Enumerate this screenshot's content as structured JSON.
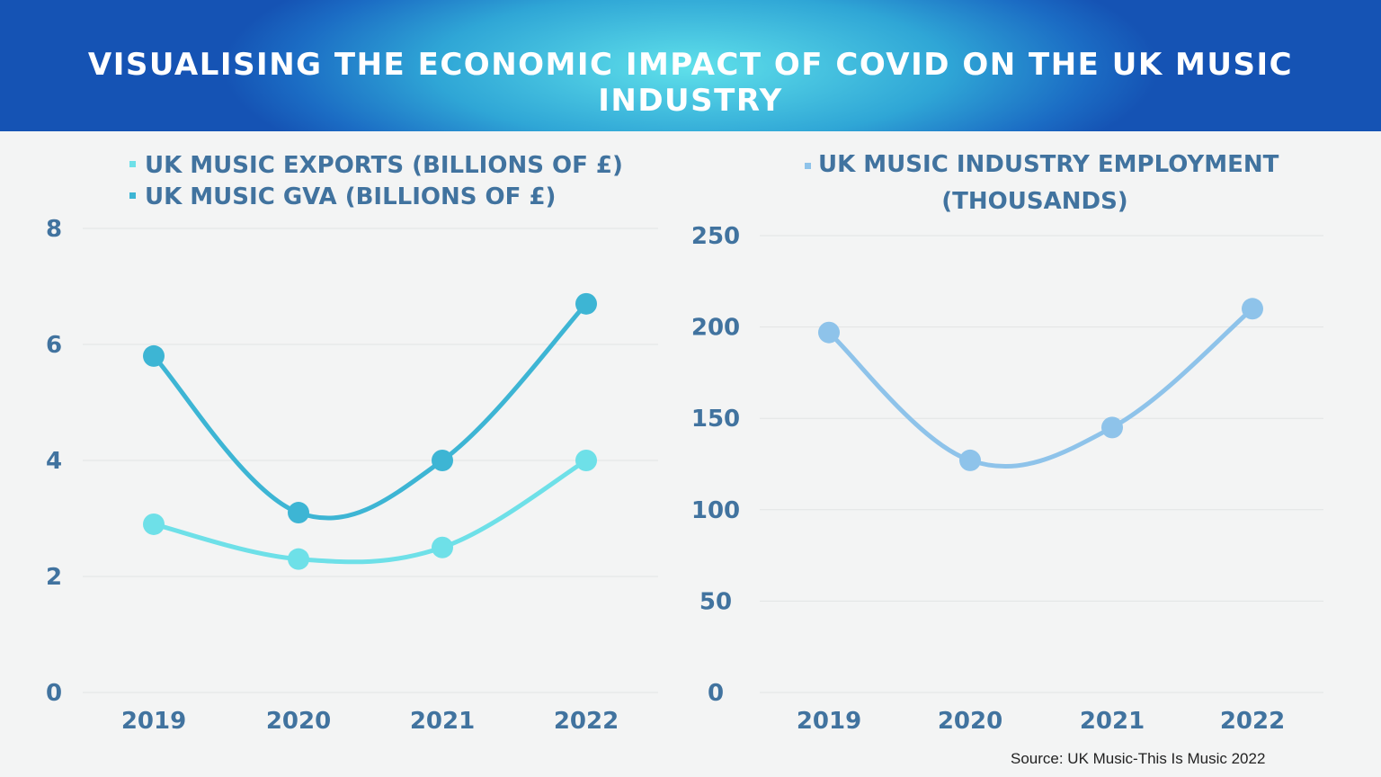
{
  "title": "VISUALISING THE ECONOMIC IMPACT OF COVID ON THE UK MUSIC INDUSTRY",
  "source": "Source: UK Music-This Is Music 2022",
  "colors": {
    "text": "#41739f",
    "exports": "#6ee0e8",
    "gva": "#3db5d4",
    "employment": "#8ec3ea",
    "grid": "#e2e4e4"
  },
  "chart_data": [
    {
      "type": "line",
      "categories": [
        "2019",
        "2020",
        "2021",
        "2022"
      ],
      "ylim": [
        0,
        8
      ],
      "yticks": [
        "0",
        "2",
        "4",
        "6",
        "8"
      ],
      "grid": true,
      "legend": "top-left",
      "series": [
        {
          "name": "UK MUSIC EXPORTS (BILLIONS OF £)",
          "values": [
            2.9,
            2.3,
            2.5,
            4.0
          ]
        },
        {
          "name": "UK MUSIC GVA (BILLIONS OF £)",
          "values": [
            5.8,
            3.1,
            4.0,
            6.7
          ]
        }
      ]
    },
    {
      "type": "line",
      "categories": [
        "2019",
        "2020",
        "2021",
        "2022"
      ],
      "ylim": [
        0,
        250
      ],
      "yticks": [
        "0",
        "50",
        "100",
        "150",
        "200",
        "250"
      ],
      "grid": true,
      "legend": "top-center",
      "series": [
        {
          "name": "UK MUSIC INDUSTRY EMPLOYMENT (THOUSANDS)",
          "name_lines": [
            "UK MUSIC INDUSTRY EMPLOYMENT",
            "(THOUSANDS)"
          ],
          "values": [
            197,
            127,
            145,
            210
          ]
        }
      ]
    }
  ]
}
